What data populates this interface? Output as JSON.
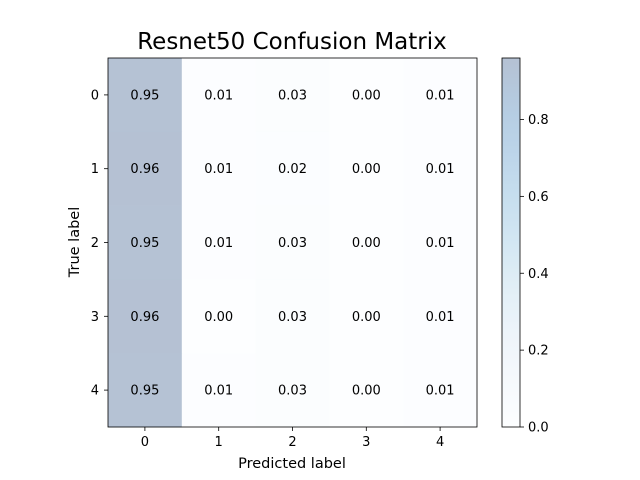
{
  "chart_data": {
    "type": "heatmap",
    "title": "Resnet50 Confusion Matrix",
    "xlabel": "Predicted label",
    "ylabel": "True label",
    "x_categories": [
      "0",
      "1",
      "2",
      "3",
      "4"
    ],
    "y_categories": [
      "0",
      "1",
      "2",
      "3",
      "4"
    ],
    "values": [
      [
        0.95,
        0.01,
        0.03,
        0.0,
        0.01
      ],
      [
        0.96,
        0.01,
        0.02,
        0.0,
        0.01
      ],
      [
        0.95,
        0.01,
        0.03,
        0.0,
        0.01
      ],
      [
        0.96,
        0.0,
        0.03,
        0.0,
        0.01
      ],
      [
        0.95,
        0.01,
        0.03,
        0.0,
        0.01
      ]
    ],
    "cell_labels": [
      [
        "0.95",
        "0.01",
        "0.03",
        "0.00",
        "0.01"
      ],
      [
        "0.96",
        "0.01",
        "0.02",
        "0.00",
        "0.01"
      ],
      [
        "0.95",
        "0.01",
        "0.03",
        "0.00",
        "0.01"
      ],
      [
        "0.96",
        "0.00",
        "0.03",
        "0.00",
        "0.01"
      ],
      [
        "0.95",
        "0.01",
        "0.03",
        "0.00",
        "0.01"
      ]
    ],
    "colorbar": {
      "range": [
        0.0,
        0.96
      ],
      "ticks": [
        0.0,
        0.2,
        0.4,
        0.6,
        0.8
      ],
      "tick_labels": [
        "0.0",
        "0.2",
        "0.4",
        "0.6",
        "0.8"
      ],
      "colormap": "Blues",
      "alpha": 0.3
    }
  }
}
